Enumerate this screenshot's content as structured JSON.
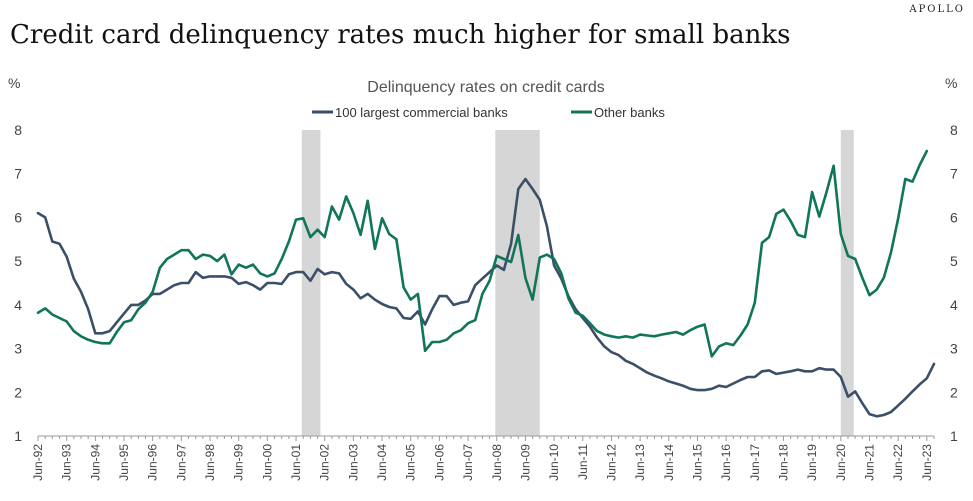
{
  "brand": "APOLLO",
  "headline": "Credit card delinquency rates much higher for small banks",
  "chart_data": {
    "type": "line",
    "title": "Delinquency rates on credit cards",
    "y_unit_left": "%",
    "y_unit_right": "%",
    "ylim": [
      1,
      8
    ],
    "yticks": [
      1,
      2,
      3,
      4,
      5,
      6,
      7,
      8
    ],
    "xlim": [
      1992.0,
      2023.5
    ],
    "xticks": [
      "Jun-92",
      "Jun-93",
      "Jun-94",
      "Jun-95",
      "Jun-96",
      "Jun-97",
      "Jun-98",
      "Jun-99",
      "Jun-00",
      "Jun-01",
      "Jun-02",
      "Jun-03",
      "Jun-04",
      "Jun-05",
      "Jun-06",
      "Jun-07",
      "Jun-08",
      "Jun-09",
      "Jun-10",
      "Jun-11",
      "Jun-12",
      "Jun-13",
      "Jun-14",
      "Jun-15",
      "Jun-16",
      "Jun-17",
      "Jun-18",
      "Jun-19",
      "Jun-20",
      "Jun-21",
      "Jun-22",
      "Jun-23"
    ],
    "recessions": [
      [
        2001.2,
        2001.85
      ],
      [
        2007.95,
        2009.5
      ],
      [
        2020.0,
        2020.45
      ]
    ],
    "legend_placement": "top-center",
    "series": [
      {
        "name": "100 largest commercial banks",
        "color": "#3b4f69",
        "points": [
          [
            1992.0,
            6.1
          ],
          [
            1992.25,
            6.0
          ],
          [
            1992.5,
            5.45
          ],
          [
            1992.75,
            5.4
          ],
          [
            1993.0,
            5.1
          ],
          [
            1993.25,
            4.6
          ],
          [
            1993.5,
            4.3
          ],
          [
            1993.75,
            3.9
          ],
          [
            1994.0,
            3.35
          ],
          [
            1994.25,
            3.35
          ],
          [
            1994.5,
            3.4
          ],
          [
            1994.75,
            3.6
          ],
          [
            1995.0,
            3.8
          ],
          [
            1995.25,
            4.0
          ],
          [
            1995.5,
            4.0
          ],
          [
            1995.75,
            4.1
          ],
          [
            1996.0,
            4.25
          ],
          [
            1996.25,
            4.25
          ],
          [
            1996.5,
            4.35
          ],
          [
            1996.75,
            4.45
          ],
          [
            1997.0,
            4.5
          ],
          [
            1997.25,
            4.5
          ],
          [
            1997.5,
            4.75
          ],
          [
            1997.75,
            4.62
          ],
          [
            1998.0,
            4.65
          ],
          [
            1998.25,
            4.65
          ],
          [
            1998.5,
            4.65
          ],
          [
            1998.75,
            4.62
          ],
          [
            1999.0,
            4.48
          ],
          [
            1999.25,
            4.52
          ],
          [
            1999.5,
            4.45
          ],
          [
            1999.75,
            4.35
          ],
          [
            2000.0,
            4.5
          ],
          [
            2000.25,
            4.5
          ],
          [
            2000.5,
            4.48
          ],
          [
            2000.75,
            4.7
          ],
          [
            2001.0,
            4.75
          ],
          [
            2001.25,
            4.75
          ],
          [
            2001.5,
            4.55
          ],
          [
            2001.75,
            4.82
          ],
          [
            2002.0,
            4.7
          ],
          [
            2002.25,
            4.75
          ],
          [
            2002.5,
            4.72
          ],
          [
            2002.75,
            4.48
          ],
          [
            2003.0,
            4.35
          ],
          [
            2003.25,
            4.15
          ],
          [
            2003.5,
            4.25
          ],
          [
            2003.75,
            4.12
          ],
          [
            2004.0,
            4.02
          ],
          [
            2004.25,
            3.95
          ],
          [
            2004.5,
            3.92
          ],
          [
            2004.75,
            3.7
          ],
          [
            2005.0,
            3.68
          ],
          [
            2005.25,
            3.85
          ],
          [
            2005.5,
            3.55
          ],
          [
            2005.75,
            3.9
          ],
          [
            2006.0,
            4.2
          ],
          [
            2006.25,
            4.2
          ],
          [
            2006.5,
            4.0
          ],
          [
            2006.75,
            4.05
          ],
          [
            2007.0,
            4.08
          ],
          [
            2007.25,
            4.45
          ],
          [
            2007.5,
            4.6
          ],
          [
            2007.75,
            4.75
          ],
          [
            2008.0,
            4.9
          ],
          [
            2008.25,
            4.8
          ],
          [
            2008.5,
            5.4
          ],
          [
            2008.75,
            6.65
          ],
          [
            2009.0,
            6.88
          ],
          [
            2009.25,
            6.65
          ],
          [
            2009.5,
            6.4
          ],
          [
            2009.75,
            5.8
          ],
          [
            2010.0,
            4.9
          ],
          [
            2010.25,
            4.6
          ],
          [
            2010.5,
            4.2
          ],
          [
            2010.75,
            3.9
          ],
          [
            2011.0,
            3.7
          ],
          [
            2011.25,
            3.5
          ],
          [
            2011.5,
            3.25
          ],
          [
            2011.75,
            3.05
          ],
          [
            2012.0,
            2.92
          ],
          [
            2012.25,
            2.85
          ],
          [
            2012.5,
            2.72
          ],
          [
            2012.75,
            2.65
          ],
          [
            2013.0,
            2.55
          ],
          [
            2013.25,
            2.45
          ],
          [
            2013.5,
            2.38
          ],
          [
            2013.75,
            2.32
          ],
          [
            2014.0,
            2.25
          ],
          [
            2014.25,
            2.2
          ],
          [
            2014.5,
            2.15
          ],
          [
            2014.75,
            2.08
          ],
          [
            2015.0,
            2.05
          ],
          [
            2015.25,
            2.05
          ],
          [
            2015.5,
            2.08
          ],
          [
            2015.75,
            2.15
          ],
          [
            2016.0,
            2.12
          ],
          [
            2016.25,
            2.2
          ],
          [
            2016.5,
            2.28
          ],
          [
            2016.75,
            2.35
          ],
          [
            2017.0,
            2.35
          ],
          [
            2017.25,
            2.48
          ],
          [
            2017.5,
            2.5
          ],
          [
            2017.75,
            2.42
          ],
          [
            2018.0,
            2.45
          ],
          [
            2018.25,
            2.48
          ],
          [
            2018.5,
            2.52
          ],
          [
            2018.75,
            2.48
          ],
          [
            2019.0,
            2.48
          ],
          [
            2019.25,
            2.55
          ],
          [
            2019.5,
            2.52
          ],
          [
            2019.75,
            2.52
          ],
          [
            2020.0,
            2.35
          ],
          [
            2020.25,
            1.9
          ],
          [
            2020.5,
            2.02
          ],
          [
            2020.75,
            1.75
          ],
          [
            2021.0,
            1.5
          ],
          [
            2021.25,
            1.45
          ],
          [
            2021.5,
            1.48
          ],
          [
            2021.75,
            1.55
          ],
          [
            2022.0,
            1.7
          ],
          [
            2022.25,
            1.85
          ],
          [
            2022.5,
            2.02
          ],
          [
            2022.75,
            2.18
          ],
          [
            2023.0,
            2.32
          ],
          [
            2023.25,
            2.65
          ]
        ]
      },
      {
        "name": "Other banks",
        "color": "#107559",
        "points": [
          [
            1992.0,
            3.82
          ],
          [
            1992.25,
            3.92
          ],
          [
            1992.5,
            3.78
          ],
          [
            1992.75,
            3.7
          ],
          [
            1993.0,
            3.62
          ],
          [
            1993.25,
            3.4
          ],
          [
            1993.5,
            3.28
          ],
          [
            1993.75,
            3.2
          ],
          [
            1994.0,
            3.15
          ],
          [
            1994.25,
            3.12
          ],
          [
            1994.5,
            3.12
          ],
          [
            1994.75,
            3.38
          ],
          [
            1995.0,
            3.6
          ],
          [
            1995.25,
            3.65
          ],
          [
            1995.5,
            3.9
          ],
          [
            1995.75,
            4.05
          ],
          [
            1996.0,
            4.3
          ],
          [
            1996.25,
            4.85
          ],
          [
            1996.5,
            5.05
          ],
          [
            1996.75,
            5.15
          ],
          [
            1997.0,
            5.25
          ],
          [
            1997.25,
            5.25
          ],
          [
            1997.5,
            5.05
          ],
          [
            1997.75,
            5.15
          ],
          [
            1998.0,
            5.12
          ],
          [
            1998.25,
            5.0
          ],
          [
            1998.5,
            5.15
          ],
          [
            1998.75,
            4.7
          ],
          [
            1999.0,
            4.92
          ],
          [
            1999.25,
            4.85
          ],
          [
            1999.5,
            4.92
          ],
          [
            1999.75,
            4.72
          ],
          [
            2000.0,
            4.65
          ],
          [
            2000.25,
            4.72
          ],
          [
            2000.5,
            5.05
          ],
          [
            2000.75,
            5.45
          ],
          [
            2001.0,
            5.95
          ],
          [
            2001.25,
            5.98
          ],
          [
            2001.5,
            5.55
          ],
          [
            2001.75,
            5.72
          ],
          [
            2002.0,
            5.55
          ],
          [
            2002.25,
            6.25
          ],
          [
            2002.5,
            5.95
          ],
          [
            2002.75,
            6.48
          ],
          [
            2003.0,
            6.1
          ],
          [
            2003.25,
            5.6
          ],
          [
            2003.5,
            6.38
          ],
          [
            2003.75,
            5.28
          ],
          [
            2004.0,
            5.98
          ],
          [
            2004.25,
            5.62
          ],
          [
            2004.5,
            5.5
          ],
          [
            2004.75,
            4.4
          ],
          [
            2005.0,
            4.12
          ],
          [
            2005.25,
            4.25
          ],
          [
            2005.5,
            2.95
          ],
          [
            2005.75,
            3.15
          ],
          [
            2006.0,
            3.15
          ],
          [
            2006.25,
            3.2
          ],
          [
            2006.5,
            3.35
          ],
          [
            2006.75,
            3.42
          ],
          [
            2007.0,
            3.58
          ],
          [
            2007.25,
            3.65
          ],
          [
            2007.5,
            4.25
          ],
          [
            2007.75,
            4.55
          ],
          [
            2008.0,
            5.12
          ],
          [
            2008.25,
            5.05
          ],
          [
            2008.5,
            4.98
          ],
          [
            2008.75,
            5.6
          ],
          [
            2009.0,
            4.62
          ],
          [
            2009.25,
            4.12
          ],
          [
            2009.5,
            5.08
          ],
          [
            2009.75,
            5.15
          ],
          [
            2010.0,
            5.05
          ],
          [
            2010.25,
            4.72
          ],
          [
            2010.5,
            4.15
          ],
          [
            2010.75,
            3.82
          ],
          [
            2011.0,
            3.75
          ],
          [
            2011.25,
            3.58
          ],
          [
            2011.5,
            3.4
          ],
          [
            2011.75,
            3.32
          ],
          [
            2012.0,
            3.28
          ],
          [
            2012.25,
            3.25
          ],
          [
            2012.5,
            3.28
          ],
          [
            2012.75,
            3.25
          ],
          [
            2013.0,
            3.32
          ],
          [
            2013.25,
            3.3
          ],
          [
            2013.5,
            3.28
          ],
          [
            2013.75,
            3.32
          ],
          [
            2014.0,
            3.35
          ],
          [
            2014.25,
            3.38
          ],
          [
            2014.5,
            3.32
          ],
          [
            2014.75,
            3.42
          ],
          [
            2015.0,
            3.5
          ],
          [
            2015.25,
            3.55
          ],
          [
            2015.5,
            2.82
          ],
          [
            2015.75,
            3.05
          ],
          [
            2016.0,
            3.12
          ],
          [
            2016.25,
            3.08
          ],
          [
            2016.5,
            3.3
          ],
          [
            2016.75,
            3.55
          ],
          [
            2017.0,
            4.05
          ],
          [
            2017.25,
            5.42
          ],
          [
            2017.5,
            5.55
          ],
          [
            2017.75,
            6.08
          ],
          [
            2018.0,
            6.18
          ],
          [
            2018.25,
            5.92
          ],
          [
            2018.5,
            5.6
          ],
          [
            2018.75,
            5.55
          ],
          [
            2019.0,
            6.58
          ],
          [
            2019.25,
            6.02
          ],
          [
            2019.5,
            6.58
          ],
          [
            2019.75,
            7.18
          ],
          [
            2020.0,
            5.62
          ],
          [
            2020.25,
            5.12
          ],
          [
            2020.5,
            5.05
          ],
          [
            2020.75,
            4.62
          ],
          [
            2021.0,
            4.22
          ],
          [
            2021.25,
            4.35
          ],
          [
            2021.5,
            4.62
          ],
          [
            2021.75,
            5.2
          ],
          [
            2022.0,
            5.98
          ],
          [
            2022.25,
            6.88
          ],
          [
            2022.5,
            6.82
          ],
          [
            2022.75,
            7.2
          ],
          [
            2023.0,
            7.52
          ]
        ]
      }
    ]
  }
}
